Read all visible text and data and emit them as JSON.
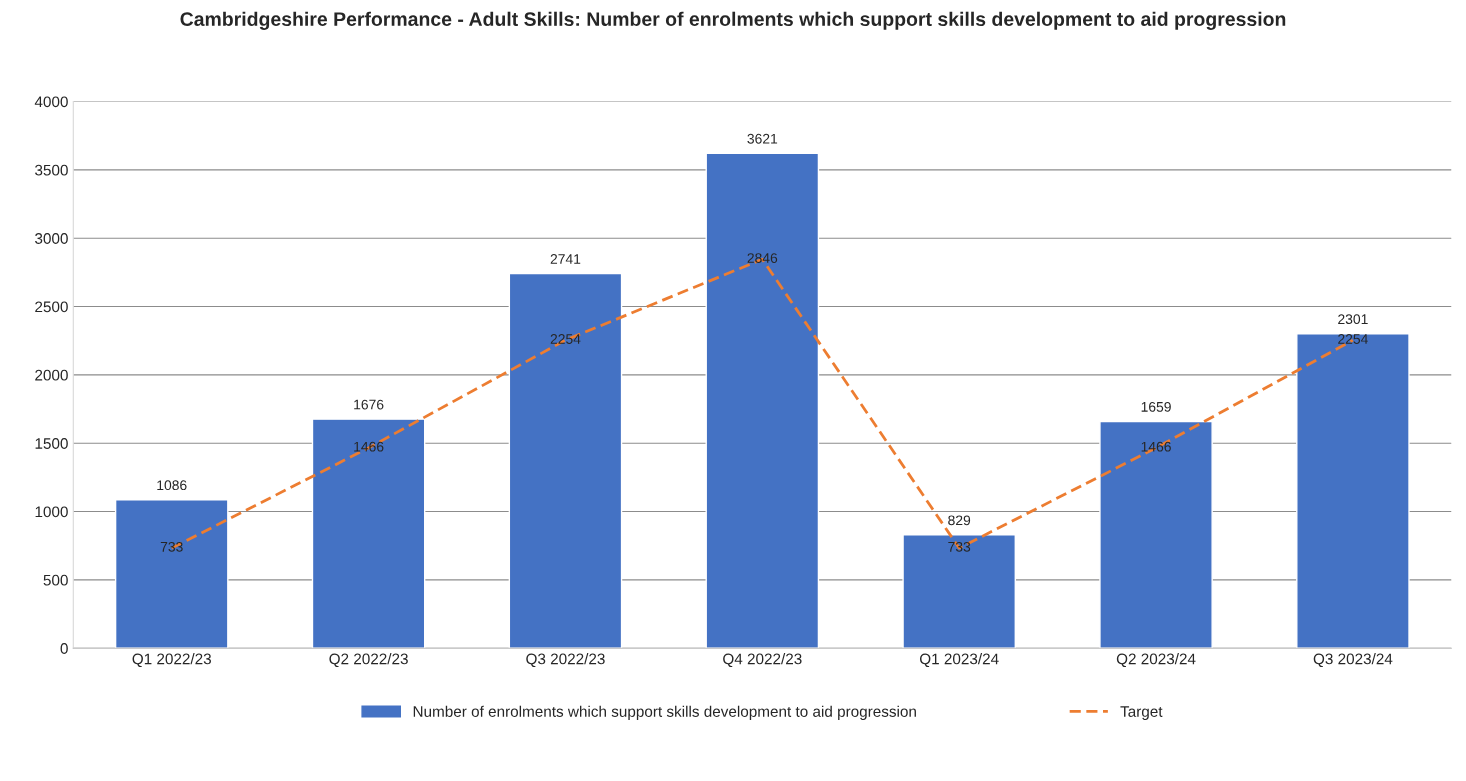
{
  "chart_data": {
    "type": "bar",
    "title": "Cambridgeshire Performance - Adult Skills: Number of enrolments which support skills development to aid progression",
    "categories": [
      "Q1 2022/23",
      "Q2 2022/23",
      "Q3 2022/23",
      "Q4 2022/23",
      "Q1 2023/24",
      "Q2 2023/24",
      "Q3 2023/24"
    ],
    "series": [
      {
        "name": "Number of enrolments which support skills development to aid progression",
        "color": "#4472c4",
        "values": [
          1086,
          1676,
          2741,
          3621,
          829,
          1659,
          2301
        ]
      },
      {
        "name": "Target",
        "type": "line",
        "color": "#ed7d31",
        "line_style": "dashed",
        "values": [
          733,
          1466,
          2254,
          2846,
          733,
          1466,
          2254
        ]
      }
    ],
    "ylim": [
      0,
      4000
    ],
    "yticks": [
      0,
      500,
      1000,
      1500,
      2000,
      2500,
      3000,
      3500,
      4000
    ],
    "grid": "y",
    "legend": "bottom",
    "data_labels": true
  }
}
